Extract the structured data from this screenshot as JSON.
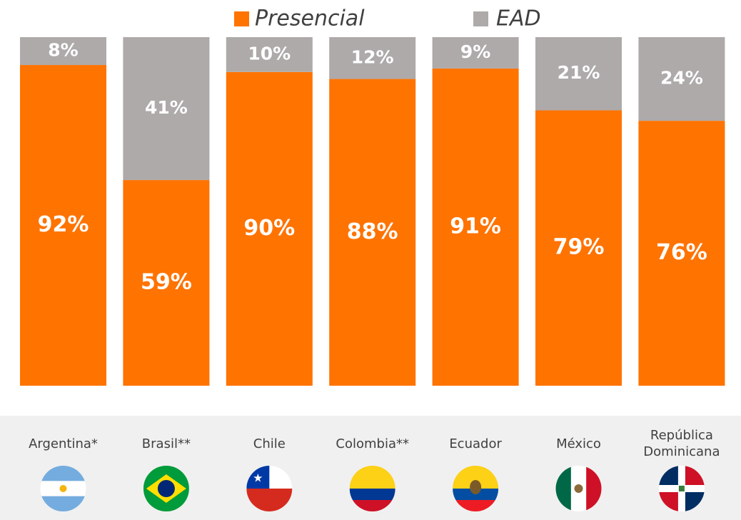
{
  "chart_data": {
    "type": "stacked_bar",
    "categories": [
      "Argentina*",
      "Brasil**",
      "Chile",
      "Colombia**",
      "Ecuador",
      "México",
      "República Dominicana"
    ],
    "series": [
      {
        "name": "Presencial",
        "color": "#ff7300",
        "values": [
          92,
          59,
          90,
          88,
          91,
          79,
          76
        ]
      },
      {
        "name": "EAD",
        "color": "#aeaaaa",
        "values": [
          8,
          41,
          10,
          12,
          9,
          21,
          24
        ]
      }
    ],
    "value_labels": [
      [
        "92%",
        "59%",
        "90%",
        "88%",
        "91%",
        "79%",
        "76%"
      ],
      [
        "8%",
        "41%",
        "10%",
        "12%",
        "9%",
        "21%",
        "24%"
      ]
    ],
    "ylim": [
      0,
      100
    ],
    "legend": "top"
  }
}
